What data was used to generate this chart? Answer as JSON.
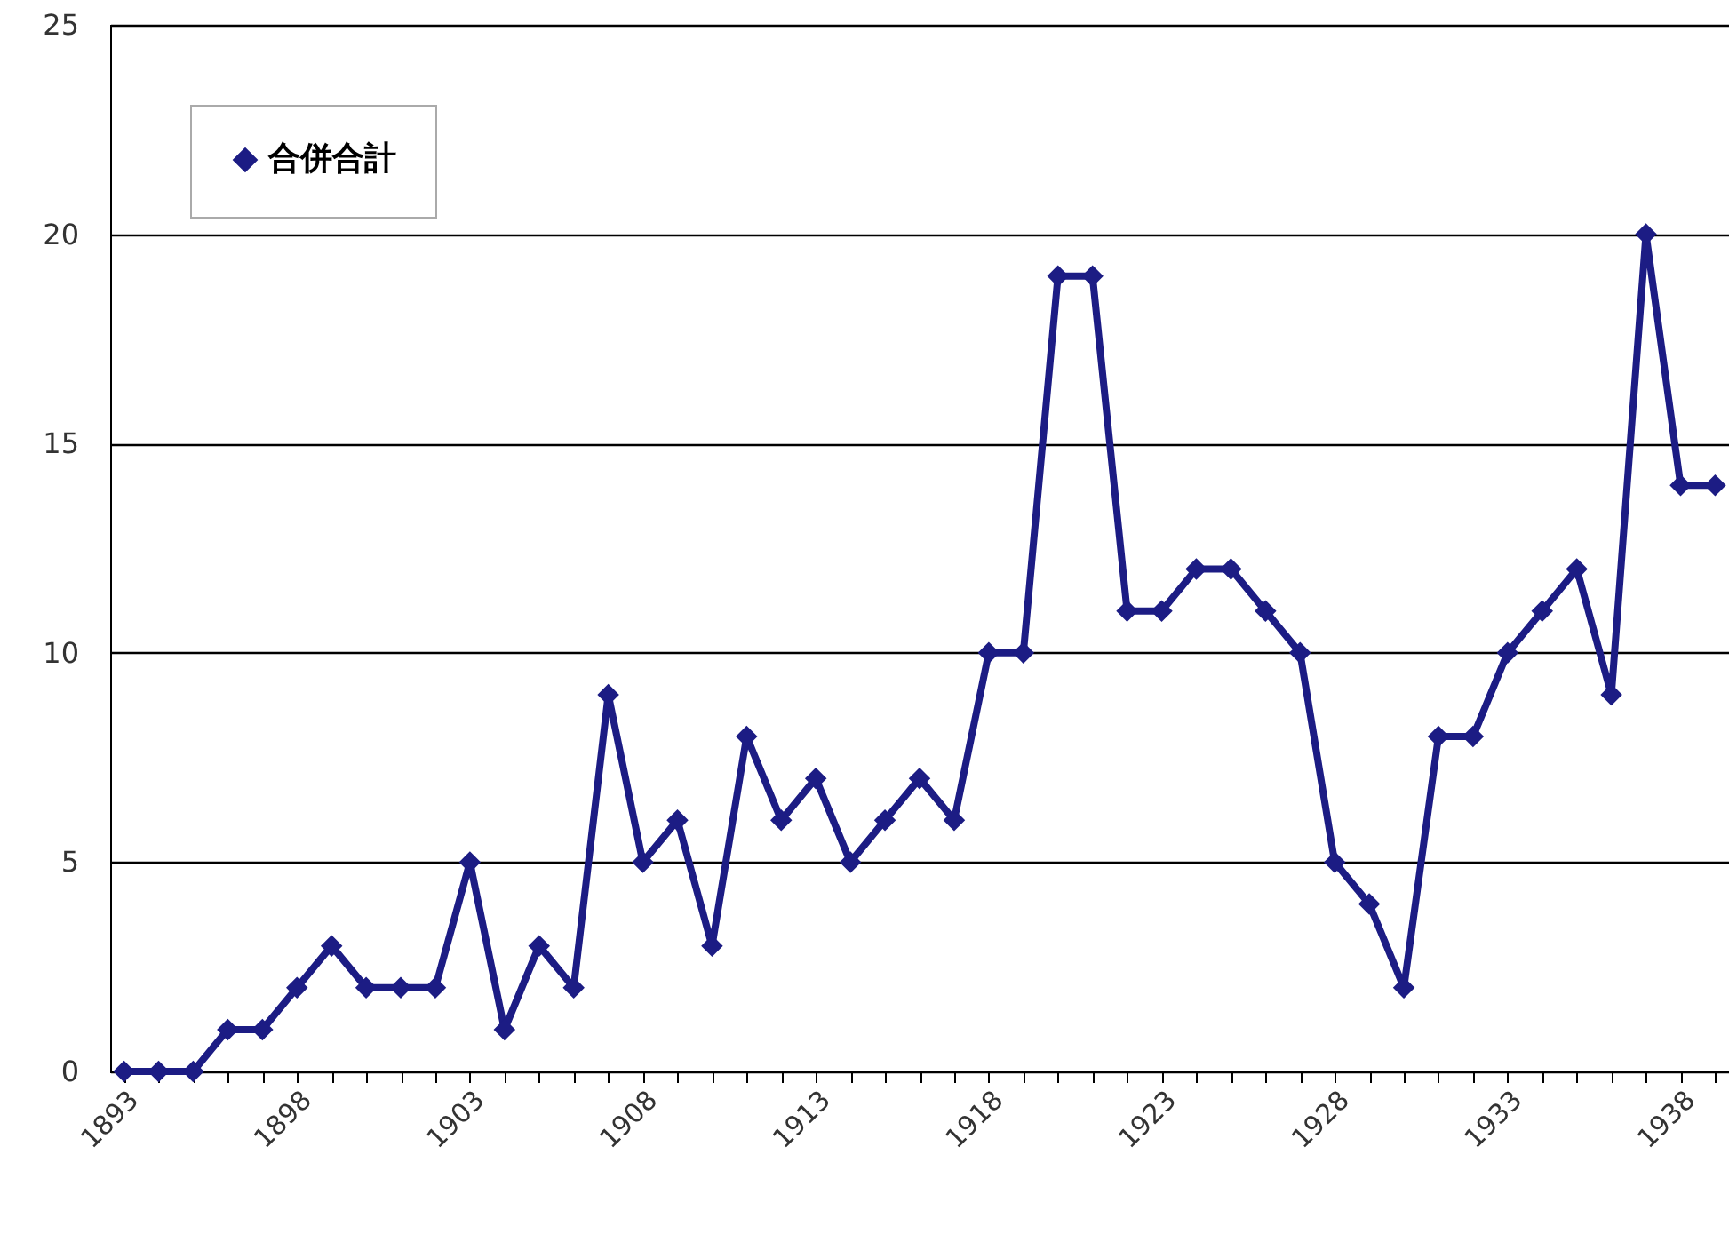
{
  "chart_data": {
    "type": "line",
    "categories": [
      "1893",
      null,
      null,
      null,
      null,
      "1898",
      null,
      null,
      null,
      null,
      "1903",
      null,
      null,
      null,
      null,
      "1908",
      null,
      null,
      null,
      null,
      "1913",
      null,
      null,
      null,
      null,
      "1918",
      null,
      null,
      null,
      null,
      "1923",
      null,
      null,
      null,
      null,
      "1928",
      null,
      null,
      null,
      null,
      "1933",
      null,
      null,
      null,
      null,
      "1938",
      null
    ],
    "series": [
      {
        "name": "合併合計",
        "color": "#1c1c84",
        "values": [
          0,
          0,
          0,
          1,
          1,
          2,
          3,
          2,
          2,
          2,
          5,
          1,
          3,
          2,
          9,
          5,
          6,
          3,
          8,
          6,
          7,
          5,
          6,
          7,
          6,
          10,
          10,
          19,
          19,
          11,
          11,
          12,
          12,
          11,
          10,
          5,
          4,
          2,
          8,
          8,
          10,
          11,
          12,
          9,
          20,
          14,
          14
        ]
      }
    ],
    "ylim": [
      0,
      25
    ],
    "yticks": [
      0,
      5,
      10,
      15,
      20,
      25
    ],
    "grid": "y",
    "legend": "top left",
    "marker": "diamond",
    "line_style": "solid"
  }
}
